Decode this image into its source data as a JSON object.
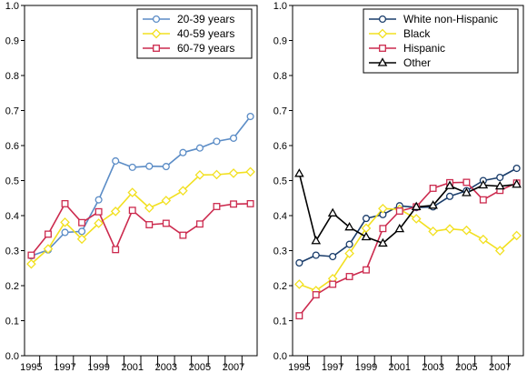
{
  "chart_data": [
    {
      "type": "line",
      "x": [
        1995,
        1996,
        1997,
        1998,
        1999,
        2000,
        2001,
        2002,
        2003,
        2004,
        2005,
        2006,
        2007,
        2008
      ],
      "x_tick_labels": [
        "1995",
        "1997",
        "1999",
        "2001",
        "2003",
        "2005",
        "2007"
      ],
      "y_tick_labels": [
        "0.0",
        "0.1",
        "0.2",
        "0.3",
        "0.4",
        "0.5",
        "0.6",
        "0.7",
        "0.8",
        "0.9",
        "1.0"
      ],
      "ylim": [
        0,
        1
      ],
      "xlim": [
        1994.6,
        2008.4
      ],
      "grid": false,
      "legend_position": "top-right",
      "series": [
        {
          "name": "20-39 years",
          "color": "#5b8cc6",
          "marker": "circle",
          "values": [
            0.285,
            0.302,
            0.352,
            0.355,
            0.445,
            0.556,
            0.538,
            0.541,
            0.54,
            0.58,
            0.593,
            0.612,
            0.621,
            0.683
          ]
        },
        {
          "name": "40-59 years",
          "color": "#f2e020",
          "marker": "diamond",
          "values": [
            0.262,
            0.305,
            0.381,
            0.333,
            0.378,
            0.412,
            0.466,
            0.422,
            0.443,
            0.471,
            0.516,
            0.517,
            0.521,
            0.525
          ]
        },
        {
          "name": "60-79 years",
          "color": "#cc2a4e",
          "marker": "square",
          "values": [
            0.287,
            0.347,
            0.434,
            0.38,
            0.411,
            0.303,
            0.415,
            0.374,
            0.378,
            0.344,
            0.376,
            0.426,
            0.433,
            0.434
          ]
        }
      ]
    },
    {
      "type": "line",
      "x": [
        1995,
        1996,
        1997,
        1998,
        1999,
        2000,
        2001,
        2002,
        2003,
        2004,
        2005,
        2006,
        2007,
        2008
      ],
      "x_tick_labels": [
        "1995",
        "1997",
        "1999",
        "2001",
        "2003",
        "2005",
        "2007"
      ],
      "y_tick_labels": [
        "0.0",
        "0.1",
        "0.2",
        "0.3",
        "0.4",
        "0.5",
        "0.6",
        "0.7",
        "0.8",
        "0.9",
        "1.0"
      ],
      "ylim": [
        0,
        1
      ],
      "xlim": [
        1994.6,
        2008.4
      ],
      "grid": false,
      "legend_position": "top-right",
      "series": [
        {
          "name": "White non-Hispanic",
          "color": "#1a3d6b",
          "marker": "circle",
          "values": [
            0.265,
            0.287,
            0.283,
            0.318,
            0.392,
            0.403,
            0.428,
            0.423,
            0.425,
            0.455,
            0.471,
            0.5,
            0.509,
            0.535
          ]
        },
        {
          "name": "Black",
          "color": "#f2e020",
          "marker": "diamond",
          "values": [
            0.204,
            0.186,
            0.22,
            0.292,
            0.364,
            0.42,
            0.418,
            0.391,
            0.355,
            0.362,
            0.358,
            0.332,
            0.3,
            0.343
          ]
        },
        {
          "name": "Hispanic",
          "color": "#cc2a4e",
          "marker": "square",
          "values": [
            0.114,
            0.174,
            0.204,
            0.226,
            0.245,
            0.363,
            0.413,
            0.425,
            0.478,
            0.494,
            0.495,
            0.445,
            0.472,
            0.493
          ]
        },
        {
          "name": "Other",
          "color": "#000000",
          "marker": "triangle",
          "values": [
            0.52,
            0.328,
            0.407,
            0.367,
            0.339,
            0.321,
            0.362,
            0.425,
            0.429,
            0.485,
            0.465,
            0.487,
            0.484,
            0.489
          ]
        }
      ]
    }
  ]
}
